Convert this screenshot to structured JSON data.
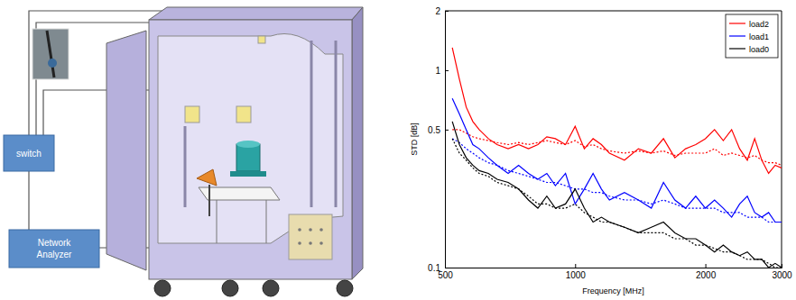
{
  "diagram": {
    "switch": "switch",
    "analyzer": [
      "Network",
      "Analyzer"
    ]
  },
  "chart_data": {
    "type": "line",
    "x_label": "Frequency [MHz]",
    "y_label": "STD [dB]",
    "log": true,
    "grid": false,
    "legend": "upper right",
    "xlim": [
      500,
      3000
    ],
    "xticks": [
      500,
      1000,
      2000,
      3000
    ],
    "ylim": [
      0.1,
      2
    ],
    "yticks": [
      0.1,
      0.5,
      1,
      2
    ],
    "x": [
      520,
      540,
      560,
      580,
      600,
      630,
      660,
      700,
      740,
      780,
      820,
      860,
      900,
      950,
      1000,
      1050,
      1100,
      1150,
      1200,
      1300,
      1400,
      1500,
      1600,
      1700,
      1800,
      1900,
      2000,
      2100,
      2200,
      2300,
      2400,
      2500,
      2600,
      2700,
      2800,
      2900,
      3000
    ],
    "series": [
      {
        "name": "load2",
        "color": "#ff0000",
        "line_style": "solid",
        "values": [
          1.3,
          0.9,
          0.65,
          0.55,
          0.5,
          0.45,
          0.42,
          0.4,
          0.42,
          0.4,
          0.42,
          0.46,
          0.45,
          0.42,
          0.52,
          0.4,
          0.45,
          0.42,
          0.38,
          0.35,
          0.4,
          0.38,
          0.45,
          0.36,
          0.4,
          0.42,
          0.45,
          0.5,
          0.44,
          0.5,
          0.4,
          0.35,
          0.45,
          0.35,
          0.3,
          0.33,
          0.32
        ]
      },
      {
        "color": "#ff0000",
        "line_style": "dotted",
        "values": [
          0.5,
          0.5,
          0.48,
          0.46,
          0.45,
          0.44,
          0.43,
          0.42,
          0.43,
          0.42,
          0.43,
          0.44,
          0.43,
          0.42,
          0.44,
          0.41,
          0.42,
          0.4,
          0.39,
          0.38,
          0.39,
          0.38,
          0.39,
          0.37,
          0.38,
          0.38,
          0.38,
          0.4,
          0.37,
          0.38,
          0.37,
          0.36,
          0.37,
          0.35,
          0.34,
          0.34,
          0.33
        ]
      },
      {
        "name": "load1",
        "color": "#0000ff",
        "line_style": "solid",
        "values": [
          0.72,
          0.6,
          0.5,
          0.42,
          0.4,
          0.36,
          0.33,
          0.3,
          0.33,
          0.3,
          0.28,
          0.3,
          0.26,
          0.3,
          0.21,
          0.25,
          0.3,
          0.25,
          0.22,
          0.24,
          0.22,
          0.2,
          0.27,
          0.22,
          0.2,
          0.23,
          0.2,
          0.22,
          0.2,
          0.18,
          0.21,
          0.23,
          0.19,
          0.18,
          0.19,
          0.17,
          0.17
        ]
      },
      {
        "color": "#0000ff",
        "line_style": "dotted",
        "values": [
          0.45,
          0.43,
          0.4,
          0.38,
          0.36,
          0.34,
          0.33,
          0.31,
          0.3,
          0.29,
          0.28,
          0.27,
          0.27,
          0.26,
          0.25,
          0.25,
          0.24,
          0.24,
          0.23,
          0.22,
          0.22,
          0.21,
          0.22,
          0.21,
          0.2,
          0.2,
          0.2,
          0.2,
          0.19,
          0.19,
          0.19,
          0.18,
          0.18,
          0.18,
          0.17,
          0.17,
          0.17
        ]
      },
      {
        "name": "load0",
        "color": "#000000",
        "line_style": "solid",
        "values": [
          0.55,
          0.42,
          0.36,
          0.33,
          0.31,
          0.3,
          0.28,
          0.27,
          0.25,
          0.22,
          0.2,
          0.23,
          0.2,
          0.21,
          0.25,
          0.2,
          0.17,
          0.18,
          0.17,
          0.16,
          0.15,
          0.16,
          0.17,
          0.15,
          0.14,
          0.14,
          0.13,
          0.12,
          0.13,
          0.12,
          0.115,
          0.12,
          0.11,
          0.11,
          0.1,
          0.105,
          0.1
        ]
      },
      {
        "color": "#000000",
        "line_style": "dotted",
        "values": [
          0.45,
          0.38,
          0.35,
          0.32,
          0.3,
          0.29,
          0.27,
          0.26,
          0.25,
          0.23,
          0.21,
          0.21,
          0.2,
          0.2,
          0.21,
          0.19,
          0.18,
          0.17,
          0.17,
          0.16,
          0.15,
          0.15,
          0.15,
          0.14,
          0.14,
          0.13,
          0.13,
          0.125,
          0.12,
          0.12,
          0.115,
          0.11,
          0.11,
          0.11,
          0.105,
          0.1,
          0.1
        ]
      }
    ]
  }
}
